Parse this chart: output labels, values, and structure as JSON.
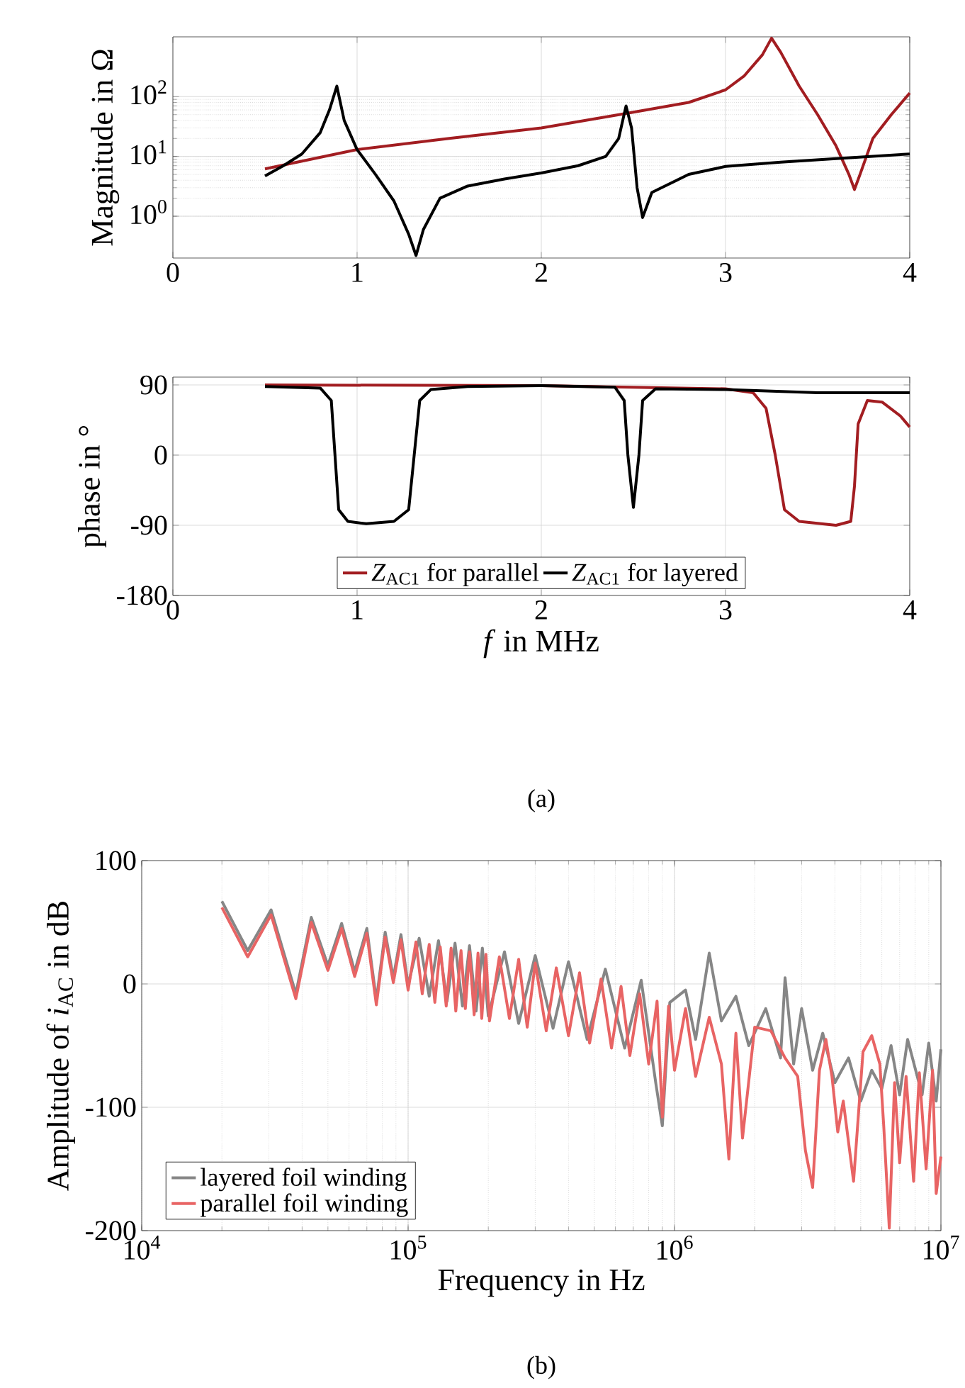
{
  "chart_data": [
    {
      "type": "line",
      "ylabel": "Magnitude in Ω",
      "xlim": [
        0,
        4
      ],
      "xticks": [
        0,
        1,
        2,
        3,
        4
      ],
      "ylim": [
        0.2,
        1000
      ],
      "log": "y",
      "grid": true,
      "yticks": [
        {
          "value": 1,
          "label": "10$^{0}$"
        },
        {
          "value": 10,
          "label": "10$^{1}$"
        },
        {
          "value": 100,
          "label": "10$^{2}$"
        }
      ],
      "series": [
        {
          "color": "#a21d21",
          "x": [
            0.5,
            1.0,
            1.5,
            2.0,
            2.5,
            2.8,
            3.0,
            3.1,
            3.2,
            3.25,
            3.3,
            3.4,
            3.5,
            3.6,
            3.67,
            3.7,
            3.73,
            3.8,
            3.9,
            4.0
          ],
          "values": [
            6.2,
            13,
            20,
            30,
            55,
            80,
            130,
            220,
            500,
            950,
            550,
            150,
            50,
            15,
            5,
            2.8,
            5,
            20,
            50,
            115
          ]
        },
        {
          "color": "#000000",
          "x": [
            0.5,
            0.6,
            0.7,
            0.8,
            0.85,
            0.89,
            0.93,
            1.0,
            1.1,
            1.2,
            1.28,
            1.32,
            1.36,
            1.45,
            1.6,
            1.8,
            2.0,
            2.2,
            2.35,
            2.42,
            2.46,
            2.49,
            2.52,
            2.55,
            2.6,
            2.8,
            3.0,
            3.3,
            3.6,
            4.0
          ],
          "values": [
            4.7,
            7,
            11,
            25,
            60,
            150,
            40,
            13,
            5,
            1.8,
            0.5,
            0.22,
            0.6,
            2,
            3.2,
            4.2,
            5.3,
            7,
            10,
            20,
            70,
            30,
            3,
            0.95,
            2.5,
            5,
            6.8,
            8,
            9.2,
            11
          ]
        }
      ]
    },
    {
      "type": "line",
      "ylabel": "phase in °",
      "xlabel": "*f* in MHz",
      "xlim": [
        0,
        4
      ],
      "xticks": [
        0,
        1,
        2,
        3,
        4
      ],
      "ylim": [
        -180,
        100
      ],
      "yticks": [
        -180,
        -90,
        0,
        90
      ],
      "grid": true,
      "legend": "bottom",
      "annotations": [
        "(a)"
      ],
      "series": [
        {
          "name": "*Z*$_{AC1}$ for parallel",
          "color": "#a21d21",
          "x": [
            0.5,
            2.0,
            3.0,
            3.15,
            3.22,
            3.27,
            3.32,
            3.4,
            3.6,
            3.68,
            3.7,
            3.72,
            3.77,
            3.85,
            3.95,
            4.0
          ],
          "values": [
            90,
            89,
            85,
            80,
            60,
            0,
            -70,
            -85,
            -90,
            -85,
            -40,
            40,
            70,
            68,
            50,
            36
          ]
        },
        {
          "name": "*Z*$_{AC1}$ for layered",
          "color": "#000000",
          "x": [
            0.5,
            0.8,
            0.86,
            0.88,
            0.9,
            0.95,
            1.05,
            1.2,
            1.28,
            1.31,
            1.34,
            1.4,
            1.6,
            2.0,
            2.4,
            2.45,
            2.47,
            2.5,
            2.53,
            2.55,
            2.62,
            3.0,
            3.5,
            4.0
          ],
          "values": [
            88,
            86,
            70,
            0,
            -70,
            -85,
            -88,
            -85,
            -70,
            0,
            70,
            84,
            88,
            89,
            87,
            70,
            0,
            -67,
            0,
            70,
            85,
            84,
            80,
            80
          ]
        }
      ]
    },
    {
      "type": "line",
      "ylabel": "Amplitude of *i*$_{AC}$ in dB",
      "xlabel": "Frequency in Hz",
      "log": "x",
      "grid": true,
      "legend": "bottom left",
      "xlim": [
        10000,
        10000000
      ],
      "ylim": [
        -200,
        100
      ],
      "yticks": [
        -200,
        -100,
        0,
        100
      ],
      "xticks": [
        {
          "value": 10000,
          "label": "10$^{4}$"
        },
        {
          "value": 100000,
          "label": "10$^{5}$"
        },
        {
          "value": 1000000,
          "label": "10$^{6}$"
        },
        {
          "value": 10000000,
          "label": "10$^{7}$"
        }
      ],
      "annotations": [
        "(b)"
      ],
      "series": [
        {
          "name": "layered foil winding",
          "color": "#868686",
          "x": [
            20000,
            25000,
            30600,
            37900,
            43300,
            50000,
            56300,
            63000,
            70000,
            76000,
            82000,
            88000,
            94000,
            100000,
            110000,
            120000,
            130000,
            140000,
            150000,
            160000,
            170000,
            180000,
            190000,
            200000,
            230000,
            260000,
            300000,
            350000,
            400000,
            470000,
            550000,
            650000,
            750000,
            850000,
            900000,
            960000,
            1100000,
            1200000,
            1350000,
            1500000,
            1700000,
            1900000,
            2200000,
            2500000,
            2600000,
            2800000,
            3000000,
            3300000,
            3600000,
            4000000,
            4500000,
            5000000,
            5500000,
            6000000,
            6500000,
            7000000,
            7500000,
            8500000,
            9000000,
            9600000,
            10000000
          ],
          "values": [
            67,
            27,
            60,
            -8,
            54,
            15,
            49,
            10,
            45,
            -13,
            42,
            5,
            40,
            -1,
            37,
            -10,
            35,
            -14,
            33,
            -18,
            31,
            -22,
            29,
            -26,
            26,
            -32,
            23,
            -36,
            18,
            -45,
            12,
            -52,
            3,
            -80,
            -115,
            -15,
            -5,
            -45,
            25,
            -30,
            -10,
            -50,
            -20,
            -60,
            5,
            -65,
            -20,
            -70,
            -40,
            -80,
            -60,
            -95,
            -70,
            -85,
            -50,
            -90,
            -45,
            -90,
            -48,
            -95,
            -53
          ]
        },
        {
          "name": "parallel foil winding",
          "color": "#e86464",
          "x": [
            20000,
            25000,
            30600,
            37900,
            43300,
            50000,
            56300,
            63000,
            70000,
            76000,
            82000,
            88000,
            94000,
            100000,
            107000,
            113000,
            120000,
            126000,
            132000,
            139000,
            145000,
            151000,
            158000,
            164000,
            170000,
            177000,
            183000,
            189000,
            196000,
            202000,
            220000,
            240000,
            260000,
            280000,
            300000,
            330000,
            360000,
            400000,
            440000,
            480000,
            530000,
            580000,
            630000,
            680000,
            740000,
            800000,
            860000,
            900000,
            950000,
            1000000,
            1100000,
            1200000,
            1350000,
            1500000,
            1600000,
            1700000,
            1800000,
            2000000,
            2300000,
            2600000,
            2900000,
            3100000,
            3300000,
            3500000,
            3700000,
            3900000,
            4100000,
            4300000,
            4700000,
            5100000,
            5500000,
            5900000,
            6100000,
            6400000,
            6700000,
            7000000,
            7400000,
            7900000,
            8300000,
            8800000,
            9300000,
            9600000,
            10000000
          ],
          "values": [
            62,
            22,
            56,
            -12,
            50,
            11,
            45,
            6,
            41,
            -17,
            38,
            1,
            36,
            -5,
            34,
            -8,
            32,
            -15,
            30,
            -18,
            29,
            -22,
            27,
            -20,
            26,
            -25,
            25,
            -28,
            24,
            -30,
            22,
            -28,
            20,
            -35,
            17,
            -38,
            13,
            -42,
            9,
            -48,
            4,
            -52,
            -2,
            -58,
            -8,
            -65,
            -14,
            -108,
            -18,
            -70,
            -20,
            -75,
            -27,
            -65,
            -142,
            -40,
            -125,
            -35,
            -38,
            -60,
            -75,
            -135,
            -165,
            -70,
            -45,
            -75,
            -120,
            -95,
            -160,
            -55,
            -42,
            -65,
            -115,
            -198,
            -80,
            -145,
            -75,
            -160,
            -72,
            -150,
            -70,
            -170,
            -140
          ]
        }
      ]
    }
  ]
}
